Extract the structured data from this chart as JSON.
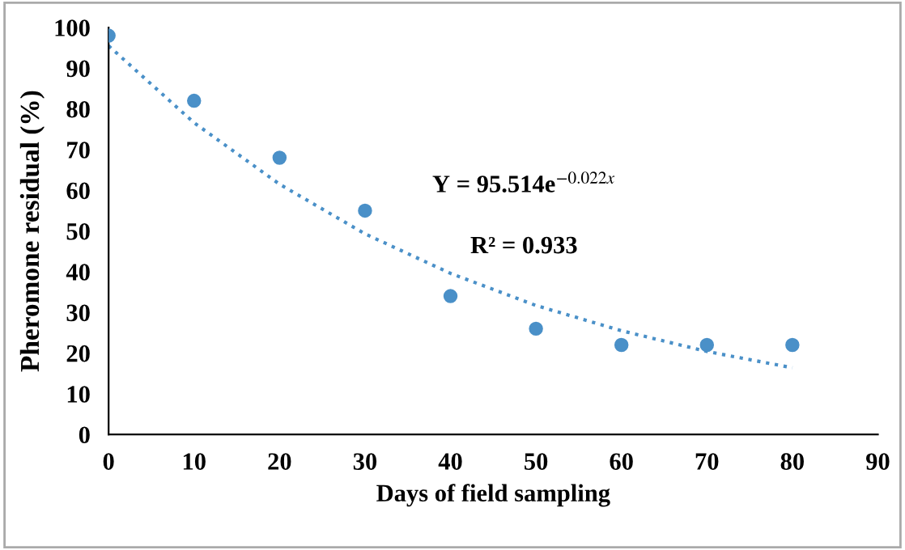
{
  "chart_data": {
    "type": "scatter",
    "xlabel": "Days of field sampling",
    "ylabel": "Pheromone residual (%)",
    "x": [
      0,
      10,
      20,
      30,
      40,
      50,
      60,
      70,
      80
    ],
    "series": [
      {
        "color": "#4a90c8",
        "marker": "circle",
        "values": [
          98,
          82,
          68,
          55,
          34,
          26,
          22,
          22,
          22
        ]
      },
      {
        "type": "line",
        "color": "#4a90c8",
        "line_style": "dotted",
        "marker": "none",
        "x": [
          0,
          10,
          20,
          30,
          40,
          50,
          60,
          70,
          80
        ],
        "values": [
          95.5,
          76.6,
          61.5,
          49.3,
          39.6,
          31.7,
          25.5,
          20.4,
          16.4
        ]
      }
    ],
    "annotations": [
      "Y = 95.514e$^{−0.022x}$",
      "R² = 0.933"
    ],
    "xlim": [
      0,
      90
    ],
    "xticks": [
      0,
      10,
      20,
      30,
      40,
      50,
      60,
      70,
      80,
      90
    ],
    "ylim": [
      0,
      100
    ],
    "yticks": [
      0,
      10,
      20,
      30,
      40,
      50,
      60,
      70,
      80,
      90,
      100
    ],
    "grid": false,
    "legend": false
  }
}
